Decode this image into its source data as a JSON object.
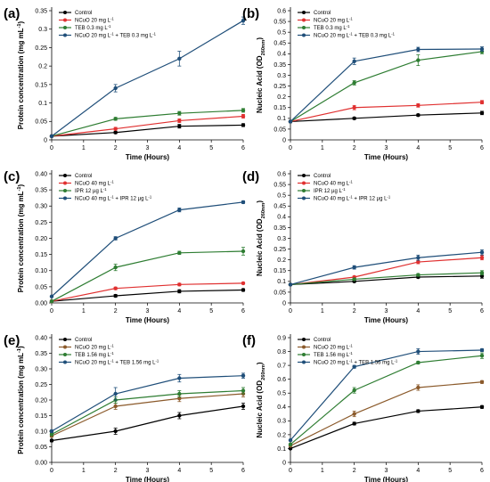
{
  "chart_data": [
    {
      "type": "line",
      "panel": "(a)",
      "xlabel": "Time (Hours)",
      "ylabel": "Protein concentration (mg mL⁻¹)",
      "x": [
        0,
        2,
        4,
        6
      ],
      "xlim": [
        0,
        6
      ],
      "xticks": [
        0,
        1,
        2,
        3,
        4,
        5,
        6
      ],
      "ylim": [
        0,
        0.35
      ],
      "yticks": [
        0,
        0.05,
        0.1,
        0.15,
        0.2,
        0.25,
        0.3,
        0.35
      ],
      "ytick_labels": [
        "0",
        "0.05",
        "0.1",
        "0.15",
        "0.2",
        "0.25",
        "0.3",
        "0.35"
      ],
      "legend_position": "top-left",
      "series": [
        {
          "name": "Control",
          "color": "#000000",
          "values": [
            0.01,
            0.02,
            0.037,
            0.04
          ],
          "errors": [
            0.002,
            0.003,
            0.005,
            0.004
          ]
        },
        {
          "name": "NCuO 20 mg L⁻¹",
          "color": "#e03030",
          "values": [
            0.01,
            0.03,
            0.052,
            0.064
          ],
          "errors": [
            0.002,
            0.004,
            0.005,
            0.005
          ]
        },
        {
          "name": "TEB 0.3 mg L⁻¹",
          "color": "#2e7d32",
          "values": [
            0.01,
            0.057,
            0.072,
            0.08
          ],
          "errors": [
            0.002,
            0.004,
            0.005,
            0.005
          ]
        },
        {
          "name": "NCuO 20 mg L⁻¹ + TEB 0.3 mg L⁻¹",
          "color": "#1f4e79",
          "values": [
            0.01,
            0.14,
            0.22,
            0.323
          ],
          "errors": [
            0.002,
            0.01,
            0.02,
            0.01
          ]
        }
      ]
    },
    {
      "type": "line",
      "panel": "(b)",
      "xlabel": "Time (Hours)",
      "ylabel": "Nucleic Acid (OD260nm)",
      "x": [
        0,
        2,
        4,
        6
      ],
      "xlim": [
        0,
        6
      ],
      "xticks": [
        0,
        1,
        2,
        3,
        4,
        5,
        6
      ],
      "ylim": [
        0,
        0.6
      ],
      "yticks": [
        0,
        0.05,
        0.1,
        0.15,
        0.2,
        0.25,
        0.3,
        0.35,
        0.4,
        0.45,
        0.5,
        0.55,
        0.6
      ],
      "ytick_labels": [
        "0",
        "0.05",
        "0.1",
        "0.15",
        "0.2",
        "0.25",
        "0.3",
        "0.35",
        "0.4",
        "0.45",
        "0.5",
        "0.55",
        "0.6"
      ],
      "legend_position": "top-left",
      "series": [
        {
          "name": "Control",
          "color": "#000000",
          "values": [
            0.085,
            0.1,
            0.115,
            0.125
          ],
          "errors": [
            0.005,
            0.005,
            0.005,
            0.008
          ]
        },
        {
          "name": "NCuO 20 mg L⁻¹",
          "color": "#e03030",
          "values": [
            0.085,
            0.15,
            0.16,
            0.175
          ],
          "errors": [
            0.005,
            0.01,
            0.008,
            0.008
          ]
        },
        {
          "name": "TEB 0.3 mg L⁻¹",
          "color": "#2e7d32",
          "values": [
            0.085,
            0.265,
            0.37,
            0.41
          ],
          "errors": [
            0.005,
            0.01,
            0.025,
            0.01
          ]
        },
        {
          "name": "NCuO 20 mg L⁻¹ + TEB 0.3 mg L⁻¹",
          "color": "#1f4e79",
          "values": [
            0.085,
            0.365,
            0.42,
            0.422
          ],
          "errors": [
            0.005,
            0.015,
            0.01,
            0.01
          ]
        }
      ]
    },
    {
      "type": "line",
      "panel": "(c)",
      "xlabel": "Time (Hours)",
      "ylabel": "Protein concentration (mg mL⁻¹)",
      "x": [
        0,
        2,
        4,
        6
      ],
      "xlim": [
        0,
        6
      ],
      "xticks": [
        0,
        1,
        2,
        3,
        4,
        5,
        6
      ],
      "ylim": [
        0,
        0.4
      ],
      "yticks": [
        0,
        0.05,
        0.1,
        0.15,
        0.2,
        0.25,
        0.3,
        0.35,
        0.4
      ],
      "ytick_labels": [
        "0.00",
        "0.05",
        "0.10",
        "0.15",
        "0.20",
        "0.25",
        "0.30",
        "0.35",
        "0.40"
      ],
      "legend_position": "top-left",
      "series": [
        {
          "name": "Control",
          "color": "#000000",
          "values": [
            0.005,
            0.022,
            0.036,
            0.04
          ],
          "errors": [
            0.002,
            0.004,
            0.005,
            0.004
          ]
        },
        {
          "name": "NCuO 40 mg L⁻¹",
          "color": "#e03030",
          "values": [
            0.005,
            0.045,
            0.057,
            0.061
          ],
          "errors": [
            0.002,
            0.004,
            0.004,
            0.003
          ]
        },
        {
          "name": "IPR 12 µg L⁻¹",
          "color": "#2e7d32",
          "values": [
            0.005,
            0.11,
            0.155,
            0.16
          ],
          "errors": [
            0.002,
            0.01,
            0.005,
            0.012
          ]
        },
        {
          "name": "NCuO 40 mg L⁻¹ + IPR 12 µg L⁻¹",
          "color": "#1f4e79",
          "values": [
            0.02,
            0.2,
            0.288,
            0.312
          ],
          "errors": [
            0.002,
            0.005,
            0.006,
            0.004
          ]
        }
      ]
    },
    {
      "type": "line",
      "panel": "(d)",
      "xlabel": "Time (Hours)",
      "ylabel": "Nucleic Acid (OD260nm)",
      "x": [
        0,
        2,
        4,
        6
      ],
      "xlim": [
        0,
        6
      ],
      "xticks": [
        0,
        1,
        2,
        3,
        4,
        5,
        6
      ],
      "ylim": [
        0,
        0.6
      ],
      "yticks": [
        0,
        0.05,
        0.1,
        0.15,
        0.2,
        0.25,
        0.3,
        0.35,
        0.4,
        0.45,
        0.5,
        0.55,
        0.6
      ],
      "ytick_labels": [
        "0",
        "0.05",
        "0.1",
        "0.15",
        "0.2",
        "0.25",
        "0.3",
        "0.35",
        "0.4",
        "0.45",
        "0.5",
        "0.55",
        "0.6"
      ],
      "legend_position": "top-left",
      "series": [
        {
          "name": "Control",
          "color": "#000000",
          "values": [
            0.085,
            0.1,
            0.12,
            0.125
          ],
          "errors": [
            0.003,
            0.004,
            0.005,
            0.01
          ]
        },
        {
          "name": "NCuO 40 mg L⁻¹",
          "color": "#e03030",
          "values": [
            0.085,
            0.12,
            0.19,
            0.21
          ],
          "errors": [
            0.003,
            0.005,
            0.008,
            0.01
          ]
        },
        {
          "name": "IPR 12 µg L⁻¹",
          "color": "#2e7d32",
          "values": [
            0.085,
            0.11,
            0.13,
            0.14
          ],
          "errors": [
            0.003,
            0.005,
            0.006,
            0.01
          ]
        },
        {
          "name": "NCuO 40 mg L⁻¹ + IPR 12 µg L⁻¹",
          "color": "#1f4e79",
          "values": [
            0.085,
            0.165,
            0.21,
            0.235
          ],
          "errors": [
            0.003,
            0.008,
            0.012,
            0.012
          ]
        }
      ]
    },
    {
      "type": "line",
      "panel": "(e)",
      "xlabel": "Time (Hours)",
      "ylabel": "Protein concentration (mg mL⁻¹)",
      "x": [
        0,
        2,
        4,
        6
      ],
      "xlim": [
        0,
        6
      ],
      "xticks": [
        0,
        1,
        2,
        3,
        4,
        5,
        6
      ],
      "ylim": [
        0,
        0.4
      ],
      "yticks": [
        0,
        0.05,
        0.1,
        0.15,
        0.2,
        0.25,
        0.3,
        0.35,
        0.4
      ],
      "ytick_labels": [
        "0.00",
        "0.05",
        "0.10",
        "0.15",
        "0.20",
        "0.25",
        "0.30",
        "0.35",
        "0.40"
      ],
      "legend_position": "top-left",
      "series": [
        {
          "name": "Control",
          "color": "#000000",
          "values": [
            0.07,
            0.1,
            0.15,
            0.18
          ],
          "errors": [
            0.004,
            0.01,
            0.01,
            0.01
          ]
        },
        {
          "name": "NCuO 20 mg L⁻¹",
          "color": "#8b5a2b",
          "values": [
            0.085,
            0.18,
            0.205,
            0.22
          ],
          "errors": [
            0.004,
            0.01,
            0.01,
            0.01
          ]
        },
        {
          "name": "TEB 1.56 mg L⁻¹",
          "color": "#2e7d32",
          "values": [
            0.09,
            0.2,
            0.22,
            0.23
          ],
          "errors": [
            0.004,
            0.01,
            0.01,
            0.01
          ]
        },
        {
          "name": "NCuO 20 mg L⁻¹ + TEB 1.56 mg L⁻¹",
          "color": "#1f4e79",
          "values": [
            0.1,
            0.22,
            0.27,
            0.278
          ],
          "errors": [
            0.004,
            0.02,
            0.012,
            0.008
          ]
        }
      ]
    },
    {
      "type": "line",
      "panel": "(f)",
      "xlabel": "Time (Hours)",
      "ylabel": "Nucleic Acid (OD260nm)",
      "x": [
        0,
        2,
        4,
        6
      ],
      "xlim": [
        0,
        6
      ],
      "xticks": [
        0,
        1,
        2,
        3,
        4,
        5,
        6
      ],
      "ylim": [
        0,
        0.9
      ],
      "yticks": [
        0,
        0.1,
        0.2,
        0.3,
        0.4,
        0.5,
        0.6,
        0.7,
        0.8,
        0.9
      ],
      "ytick_labels": [
        "0",
        "0.1",
        "0.2",
        "0.3",
        "0.4",
        "0.5",
        "0.6",
        "0.7",
        "0.8",
        "0.9"
      ],
      "legend_position": "top-left",
      "series": [
        {
          "name": "Control",
          "color": "#000000",
          "values": [
            0.1,
            0.28,
            0.37,
            0.4
          ],
          "errors": [
            0.005,
            0.01,
            0.01,
            0.01
          ]
        },
        {
          "name": "NCuO 20 mg L⁻¹",
          "color": "#8b5a2b",
          "values": [
            0.12,
            0.35,
            0.54,
            0.58
          ],
          "errors": [
            0.005,
            0.02,
            0.02,
            0.01
          ]
        },
        {
          "name": "TEB 1.56 mg L⁻¹",
          "color": "#2e7d32",
          "values": [
            0.13,
            0.52,
            0.72,
            0.77
          ],
          "errors": [
            0.005,
            0.02,
            0.01,
            0.02
          ]
        },
        {
          "name": "NCuO 20 mg L⁻¹ + TEB 1.56 mg L⁻¹",
          "color": "#1f4e79",
          "values": [
            0.16,
            0.69,
            0.8,
            0.81
          ],
          "errors": [
            0.005,
            0.01,
            0.02,
            0.01
          ]
        }
      ]
    }
  ]
}
